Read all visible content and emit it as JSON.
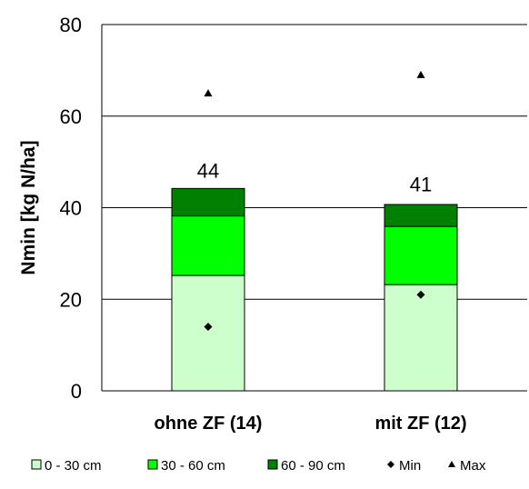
{
  "chart_data": {
    "type": "bar",
    "stacked": true,
    "ylabel": "Nmin [kg N/ha]",
    "xlabel": "",
    "ylim": [
      0,
      80
    ],
    "yticks": [
      0,
      20,
      40,
      60,
      80
    ],
    "grid": true,
    "legend_position": "bottom",
    "categories": [
      "ohne ZF (14)",
      "mit ZF (12)"
    ],
    "series": [
      {
        "name": "0 - 30 cm",
        "color": "#ccffcc",
        "values": [
          25.2,
          23.2
        ]
      },
      {
        "name": "30 - 60 cm",
        "color": "#00ff00",
        "values": [
          13.0,
          12.7
        ]
      },
      {
        "name": "60 - 90 cm",
        "color": "#008000",
        "values": [
          6.0,
          4.8
        ]
      }
    ],
    "totals": [
      44,
      41
    ],
    "markers": [
      {
        "name": "Min",
        "shape": "diamond",
        "values": [
          14,
          21
        ]
      },
      {
        "name": "Max",
        "shape": "triangle",
        "values": [
          65,
          69
        ]
      }
    ]
  }
}
